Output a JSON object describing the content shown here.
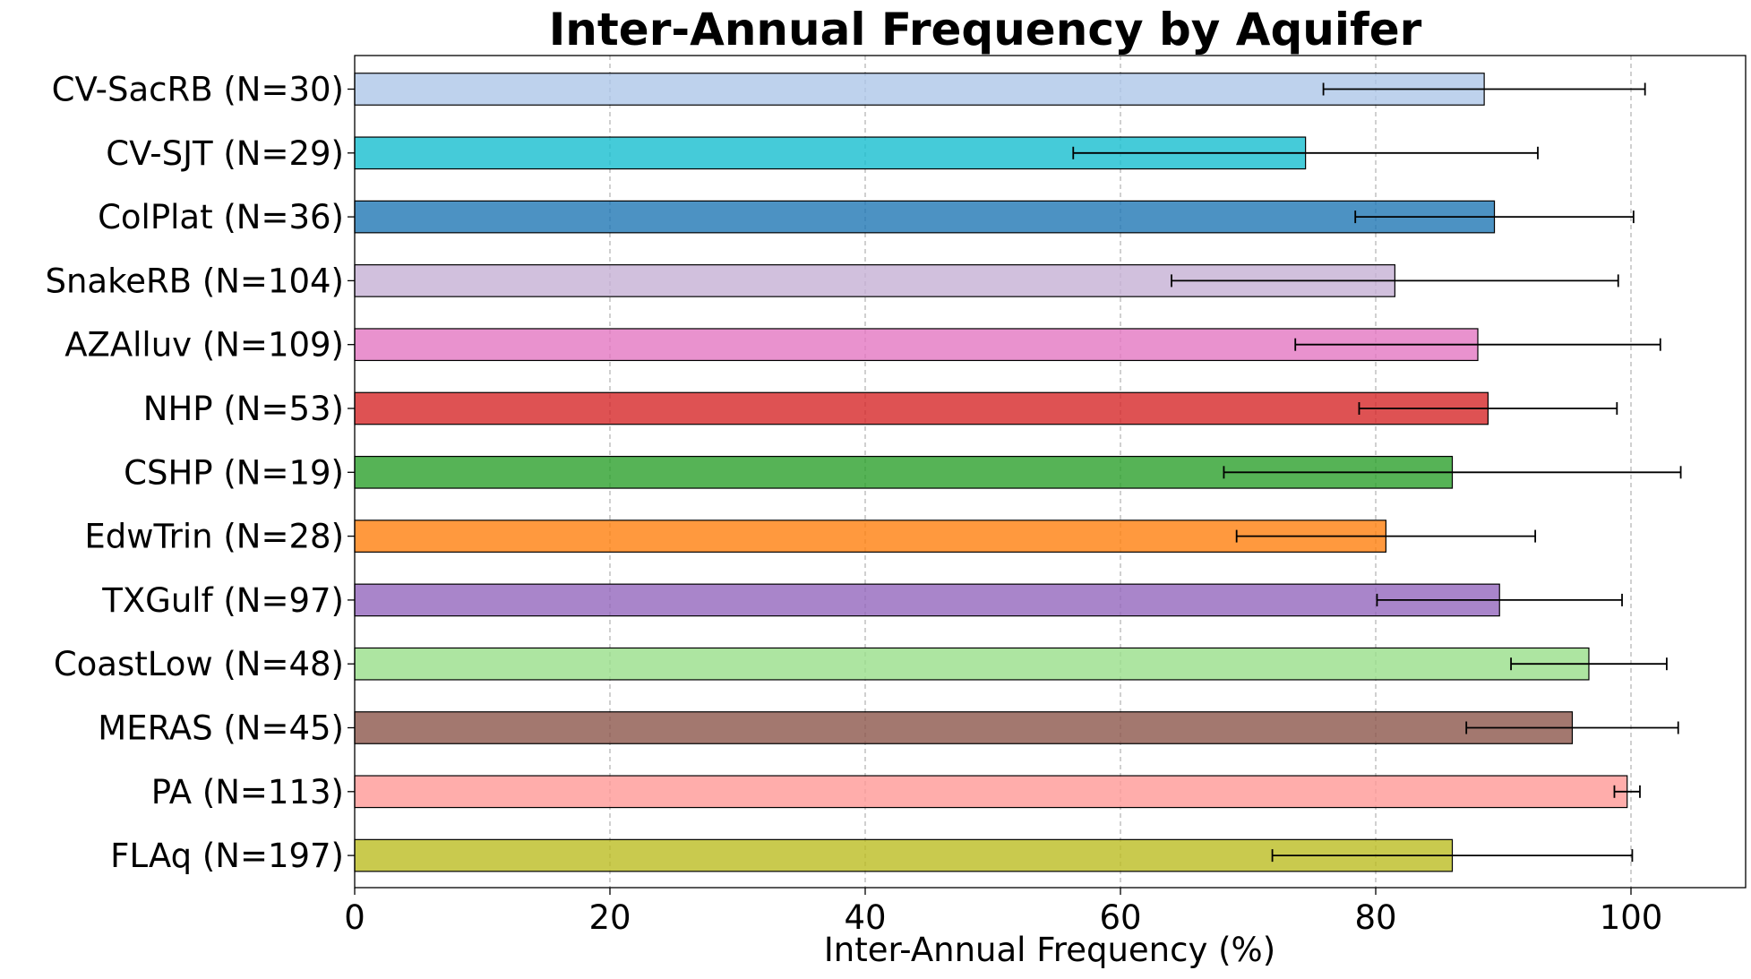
{
  "chart_data": {
    "type": "bar",
    "orientation": "horizontal",
    "title": "Inter-Annual Frequency by Aquifer",
    "xlabel": "Inter-Annual Frequency (%)",
    "ylabel": "",
    "xlim": [
      0,
      109
    ],
    "x_ticks": [
      0,
      20,
      40,
      60,
      80,
      100
    ],
    "grid": "x-dashed",
    "categories": [
      "CV-SacRB (N=30)",
      "CV-SJT (N=29)",
      "ColPlat (N=36)",
      "SnakeRB (N=104)",
      "AZAlluv (N=109)",
      "NHP (N=53)",
      "CSHP (N=19)",
      "EdwTrin (N=28)",
      "TXGulf (N=97)",
      "CoastLow (N=48)",
      "MERAS (N=45)",
      "PA (N=113)",
      "FLAq (N=197)"
    ],
    "values": [
      88.5,
      74.5,
      89.3,
      81.5,
      88.0,
      88.8,
      86.0,
      80.8,
      89.7,
      96.7,
      95.4,
      99.7,
      86.0
    ],
    "errors": [
      12.6,
      18.2,
      10.9,
      17.5,
      14.3,
      10.1,
      17.9,
      11.7,
      9.6,
      6.1,
      8.3,
      1.0,
      14.1
    ],
    "colors": [
      "#aec7e8",
      "#17becf",
      "#1f77b4",
      "#c5b0d5",
      "#e377c2",
      "#d62728",
      "#2ca02c",
      "#ff7f0e",
      "#9467bd",
      "#98df8a",
      "#8c564b",
      "#ff9896",
      "#bcbd22"
    ]
  }
}
